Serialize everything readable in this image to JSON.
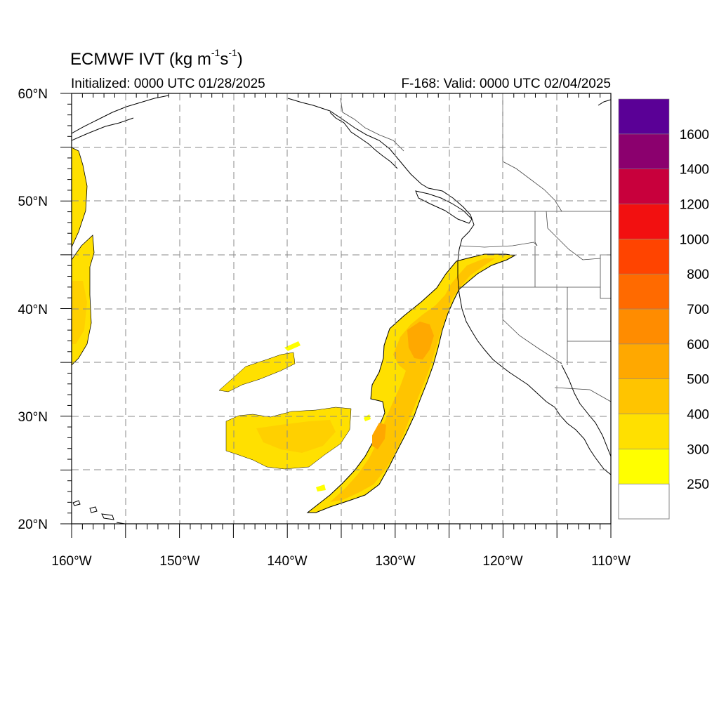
{
  "header": {
    "title": "ECMWF IVT (kg m",
    "title_sup1": "-1",
    "title_mid": "s",
    "title_sup2": "-1",
    "title_end": ")",
    "initialized": "Initialized: 0000 UTC 01/28/2025",
    "valid": "F-168: Valid: 0000 UTC 02/04/2025"
  },
  "map": {
    "lat_labels": [
      "20°N",
      "30°N",
      "40°N",
      "50°N",
      "60°N"
    ],
    "lon_labels": [
      "160°W",
      "150°W",
      "140°W",
      "130°W",
      "120°W",
      "110°W"
    ]
  },
  "colorbar": {
    "labels": [
      "250",
      "300",
      "400",
      "500",
      "600",
      "700",
      "800",
      "1000",
      "1200",
      "1400",
      "1600"
    ],
    "colors": [
      "#ffff00",
      "#ffe000",
      "#ffc400",
      "#ffa800",
      "#ff8c00",
      "#ff6a00",
      "#ff4400",
      "#f21010",
      "#c8003c",
      "#8b006e",
      "#5a0096"
    ]
  },
  "chart_data": {
    "type": "heatmap",
    "title": "ECMWF IVT (kg m-1s-1)",
    "initialized": "Initialized: 0000 UTC 01/28/2025",
    "valid": "F-168: Valid: 0000 UTC 02/04/2025",
    "lon_range": [
      -160,
      -110
    ],
    "lat_range": [
      20,
      60
    ],
    "grid_spacing_deg": 5,
    "levels": [
      250,
      300,
      400,
      500,
      600,
      700,
      800,
      1000,
      1200,
      1400,
      1600
    ],
    "features": [
      {
        "name": "atmospheric river",
        "from": [
          -137,
          21.2
        ],
        "to": [
          -119,
          45
        ],
        "max_ivt_range": [
          400,
          500
        ]
      },
      {
        "name": "moisture plume",
        "lon": [
          -145.5,
          -134
        ],
        "lat": [
          25.5,
          31
        ],
        "ivt_range": [
          250,
          400
        ]
      },
      {
        "name": "moisture band",
        "lon": [
          -146,
          -138
        ],
        "lat": [
          31.5,
          37
        ],
        "ivt_range": [
          250,
          300
        ]
      },
      {
        "name": "western edge plume",
        "lon": [
          -160,
          -158
        ],
        "lat": [
          35,
          55
        ],
        "ivt_range": [
          250,
          400
        ]
      }
    ]
  }
}
